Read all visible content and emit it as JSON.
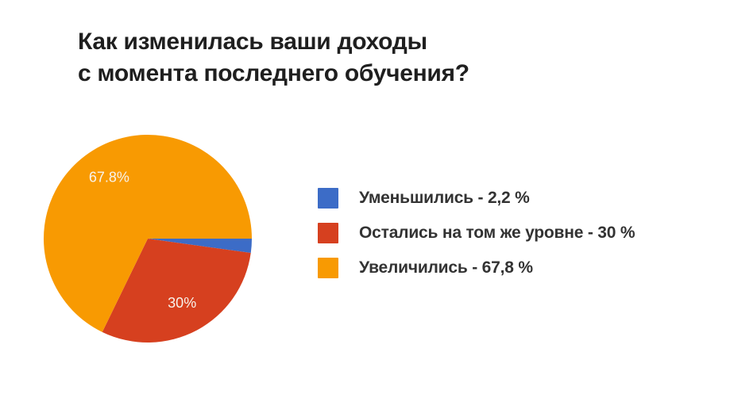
{
  "title": {
    "line1": "Как изменилась ваши доходы",
    "line2": "с момента последнего обучения?"
  },
  "chart_data": {
    "type": "pie",
    "title": "Как изменилась ваши доходы с момента последнего обучения?",
    "labels": [
      "Уменьшились",
      "Остались на том же уровне",
      "Увеличились"
    ],
    "values": [
      2.2,
      30,
      67.8
    ],
    "colors": [
      "#3C6CC7",
      "#D6401F",
      "#F89A02"
    ],
    "slice_labels": [
      "",
      "30%",
      "67.8%"
    ],
    "slice_label_color": "#F7F3EC",
    "start_angle_deg": 0,
    "direction": "clockwise",
    "legend_position": "right",
    "background": "#ffffff"
  },
  "legend": {
    "items": [
      {
        "label": "Уменьшились - 2,2 %",
        "color": "#3C6CC7"
      },
      {
        "label": "Остались на том же уровне - 30 %",
        "color": "#D6401F"
      },
      {
        "label": "Увеличились - 67,8 %",
        "color": "#F89A02"
      }
    ]
  }
}
